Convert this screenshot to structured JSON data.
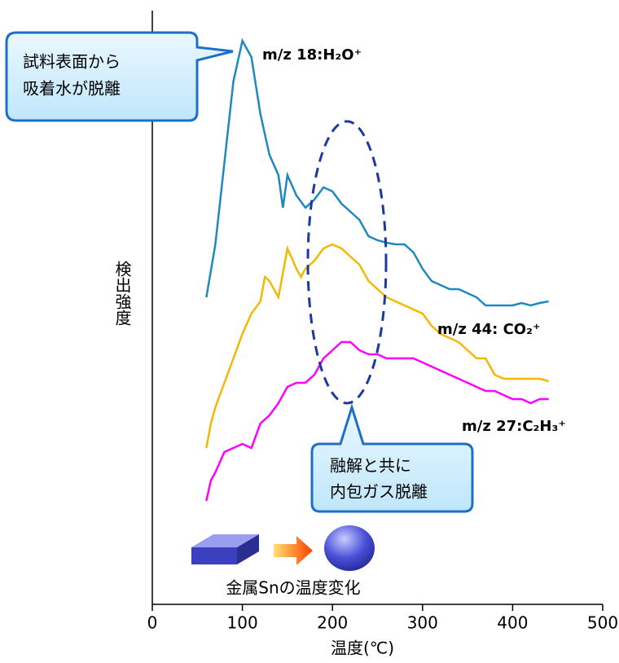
{
  "chart_data": {
    "type": "line",
    "x_label": "温度(℃)",
    "y_label": "検出強度",
    "xlim": [
      0,
      500
    ],
    "xticks": [
      0,
      100,
      200,
      300,
      400,
      500
    ],
    "ylim": [
      0,
      729
    ],
    "series": [
      {
        "name": "m/z 18:H₂O⁺",
        "color": "#1e88c0",
        "x": [
          60,
          70,
          80,
          90,
          100,
          110,
          120,
          130,
          140,
          145,
          150,
          160,
          170,
          180,
          190,
          200,
          210,
          220,
          230,
          240,
          250,
          260,
          270,
          280,
          290,
          300,
          310,
          320,
          330,
          340,
          350,
          360,
          370,
          380,
          390,
          400,
          410,
          420,
          430,
          440
        ],
        "values": [
          377,
          442,
          542,
          642,
          692,
          672,
          602,
          552,
          527,
          487,
          527,
          502,
          487,
          497,
          512,
          507,
          492,
          482,
          472,
          452,
          447,
          444,
          442,
          442,
          432,
          412,
          397,
          392,
          387,
          387,
          382,
          377,
          367,
          367,
          367,
          367,
          370,
          367,
          370,
          372
        ]
      },
      {
        "name": "m/z 44: CO₂⁺",
        "color": "#f5b800",
        "x": [
          60,
          65,
          70,
          80,
          90,
          100,
          110,
          120,
          125,
          130,
          140,
          150,
          160,
          165,
          170,
          180,
          190,
          200,
          210,
          220,
          230,
          240,
          250,
          260,
          270,
          280,
          290,
          300,
          310,
          320,
          330,
          340,
          350,
          360,
          370,
          380,
          390,
          400,
          410,
          420,
          430,
          440
        ],
        "values": [
          192,
          222,
          242,
          272,
          302,
          332,
          357,
          372,
          402,
          397,
          377,
          437,
          412,
          402,
          412,
          422,
          437,
          442,
          437,
          427,
          417,
          397,
          387,
          377,
          372,
          367,
          362,
          357,
          342,
          332,
          327,
          322,
          312,
          302,
          302,
          282,
          277,
          277,
          277,
          277,
          277,
          274
        ]
      },
      {
        "name": "m/z 27:C₂H₃⁺",
        "color": "#ff00ff",
        "x": [
          60,
          65,
          70,
          80,
          90,
          100,
          110,
          120,
          130,
          140,
          150,
          160,
          170,
          180,
          190,
          200,
          210,
          220,
          230,
          240,
          250,
          260,
          270,
          280,
          290,
          300,
          310,
          320,
          330,
          340,
          350,
          360,
          370,
          380,
          390,
          400,
          410,
          420,
          430,
          440
        ],
        "values": [
          127,
          152,
          162,
          187,
          192,
          197,
          192,
          222,
          232,
          247,
          267,
          272,
          272,
          282,
          302,
          312,
          322,
          322,
          312,
          307,
          307,
          302,
          302,
          302,
          302,
          297,
          292,
          287,
          282,
          277,
          272,
          267,
          262,
          262,
          257,
          252,
          252,
          247,
          252,
          252
        ]
      }
    ],
    "annotations": [
      {
        "lines": [
          "試料表面から",
          "吸着水が脱離"
        ]
      },
      {
        "lines": [
          "融解と共に",
          "内包ガス脱離"
        ]
      },
      {
        "lines": [
          "金属Snの温度変化"
        ]
      }
    ]
  }
}
